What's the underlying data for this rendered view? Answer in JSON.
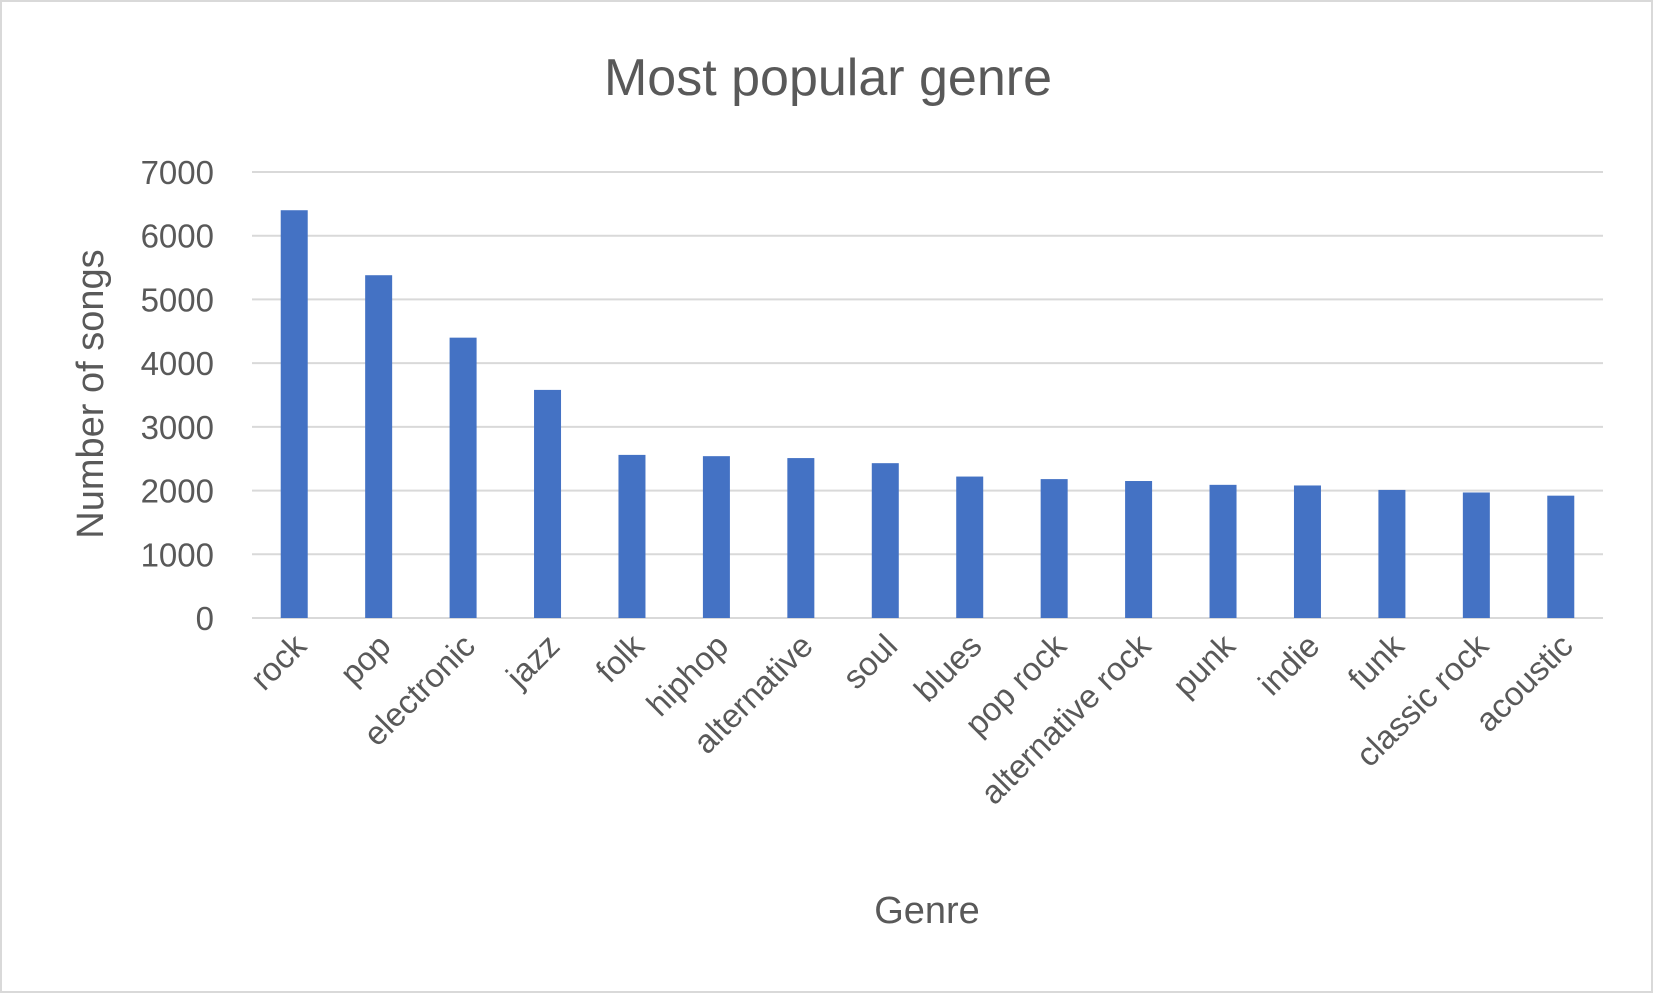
{
  "chart_data": {
    "type": "bar",
    "title": "Most popular genre",
    "xlabel": "Genre",
    "ylabel": "Number of songs",
    "ylim": [
      0,
      7000
    ],
    "yticks": [
      0,
      1000,
      2000,
      3000,
      4000,
      5000,
      6000,
      7000
    ],
    "grid": true,
    "legend": "none",
    "categories": [
      "rock",
      "pop",
      "electronic",
      "jazz",
      "folk",
      "hiphop",
      "alternative",
      "soul",
      "blues",
      "pop rock",
      "alternative rock",
      "punk",
      "indie",
      "funk",
      "classic rock",
      "acoustic"
    ],
    "values": [
      6400,
      5380,
      4400,
      3580,
      2560,
      2540,
      2510,
      2430,
      2220,
      2180,
      2150,
      2090,
      2080,
      2010,
      1970,
      1920
    ],
    "colors": {
      "bar": "#4472C4",
      "grid": "#d9d9d9",
      "text": "#595959",
      "border": "#d9d9d9"
    }
  }
}
